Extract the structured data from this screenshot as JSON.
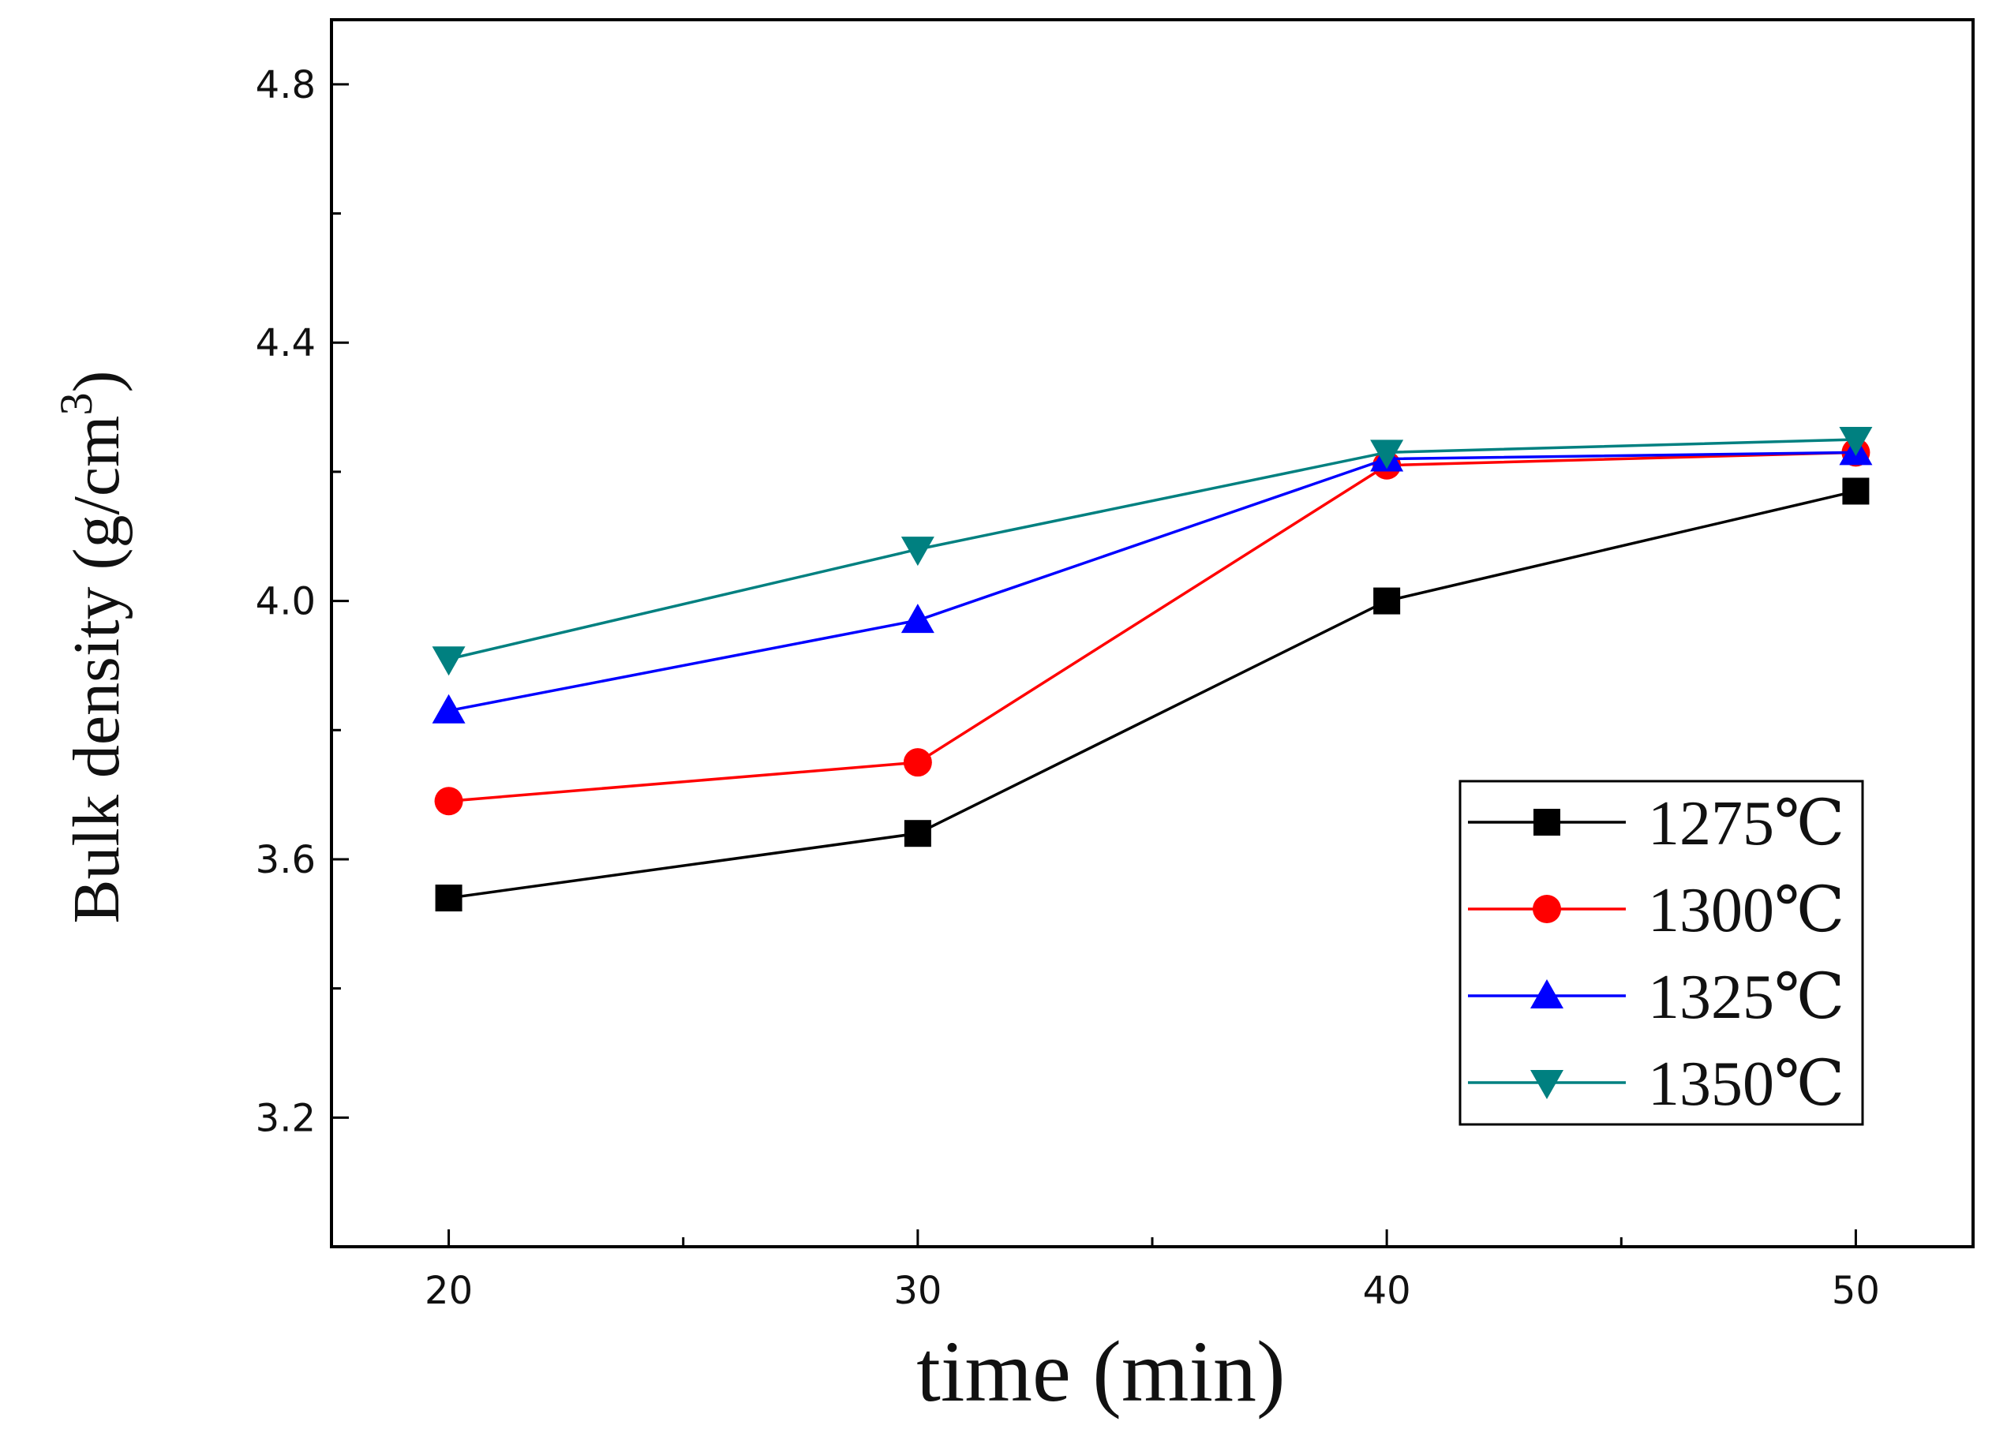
{
  "chart_data": {
    "type": "line",
    "title": "",
    "xlabel": "time (min)",
    "ylabel": "Bulk density (g/cm",
    "ylabel_superscript": "3",
    "ylabel_close": ")",
    "x": [
      20,
      30,
      40,
      50
    ],
    "x_ticks": [
      "20",
      "30",
      "40",
      "50"
    ],
    "y_ticks": [
      "3.2",
      "3.6",
      "4.0",
      "4.4",
      "4.8"
    ],
    "xlim": [
      17.5,
      52.5
    ],
    "ylim": [
      3.0,
      4.9
    ],
    "grid": false,
    "legend_position": "bottom-right",
    "series": [
      {
        "name": "1275℃",
        "color": "#000000",
        "marker": "square",
        "values": [
          3.54,
          3.64,
          4.0,
          4.17
        ]
      },
      {
        "name": "1300℃",
        "color": "#ff0000",
        "marker": "circle",
        "values": [
          3.69,
          3.75,
          4.21,
          4.23
        ]
      },
      {
        "name": "1325℃",
        "color": "#0000ff",
        "marker": "triangle-up",
        "values": [
          3.83,
          3.97,
          4.22,
          4.23
        ]
      },
      {
        "name": "1350℃",
        "color": "#008080",
        "marker": "triangle-down",
        "values": [
          3.91,
          4.08,
          4.23,
          4.25
        ]
      }
    ]
  }
}
